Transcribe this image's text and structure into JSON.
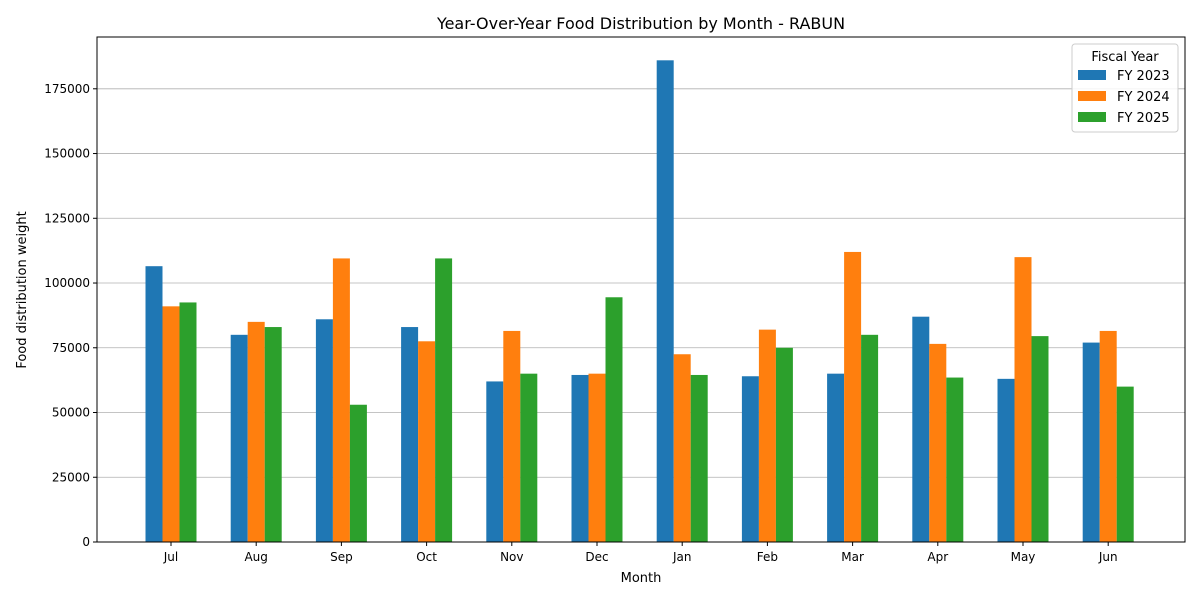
{
  "chart_data": {
    "type": "bar",
    "title": "Year-Over-Year Food Distribution by Month - RABUN",
    "xlabel": "Month",
    "ylabel": "Food distribution weight",
    "categories": [
      "Jul",
      "Aug",
      "Sep",
      "Oct",
      "Nov",
      "Dec",
      "Jan",
      "Feb",
      "Mar",
      "Apr",
      "May",
      "Jun"
    ],
    "series": [
      {
        "name": "FY 2023",
        "color": "#1f77b4",
        "values": [
          106500,
          80000,
          86000,
          83000,
          62000,
          64500,
          186000,
          64000,
          65000,
          87000,
          63000,
          77000
        ]
      },
      {
        "name": "FY 2024",
        "color": "#ff7f0e",
        "values": [
          91000,
          85000,
          109500,
          77500,
          81500,
          65000,
          72500,
          82000,
          112000,
          76500,
          110000,
          81500
        ]
      },
      {
        "name": "FY 2025",
        "color": "#2ca02c",
        "values": [
          92500,
          83000,
          53000,
          109500,
          65000,
          94500,
          64500,
          75000,
          80000,
          63500,
          79500,
          60000
        ]
      }
    ],
    "ylim": [
      0,
      195000
    ],
    "yticks": [
      "0",
      "25000",
      "50000",
      "75000",
      "100000",
      "125000",
      "150000",
      "175000"
    ],
    "grid": "horizontal",
    "legend": {
      "title": "Fiscal Year",
      "placement": "top-right"
    }
  }
}
